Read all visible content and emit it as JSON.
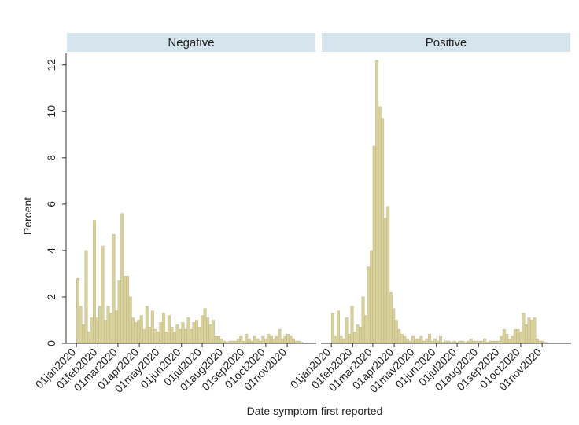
{
  "chart_data": {
    "type": "histogram",
    "xlabel": "Date symptom first reported",
    "ylabel": "Percent",
    "bins": [
      21915,
      21919,
      21923,
      21927,
      21931,
      21935,
      21939,
      21943,
      21947,
      21951,
      21955,
      21959,
      21963,
      21967,
      21971,
      21975,
      21979,
      21983,
      21987,
      21991,
      21995,
      21999,
      22003,
      22007,
      22011,
      22015,
      22019,
      22023,
      22027,
      22031,
      22035,
      22039,
      22043,
      22047,
      22051,
      22055,
      22059,
      22063,
      22067,
      22071,
      22075,
      22079,
      22083,
      22087,
      22091,
      22095,
      22099,
      22103,
      22107,
      22111,
      22115,
      22119,
      22123,
      22127,
      22131,
      22135,
      22139,
      22143,
      22147,
      22151,
      22155,
      22159,
      22163,
      22167,
      22171,
      22175,
      22179,
      22183,
      22187,
      22191,
      22195,
      22199,
      22203,
      22207,
      22211,
      22215,
      22219,
      22223,
      22227,
      22231,
      22235,
      22239,
      22243,
      22247,
      22251
    ],
    "series": [
      {
        "name": "Negative",
        "color": "#d8d19c",
        "values": [
          2.8,
          1.6,
          0.8,
          4.0,
          0.5,
          1.1,
          5.3,
          1.1,
          1.6,
          4.2,
          1.0,
          1.6,
          1.3,
          4.7,
          1.4,
          2.7,
          5.6,
          2.9,
          2.9,
          2.0,
          1.1,
          0.9,
          1.0,
          1.2,
          0.6,
          1.6,
          0.7,
          1.4,
          0.6,
          0.5,
          0.9,
          1.3,
          0.5,
          1.2,
          0.7,
          0.5,
          0.8,
          0.6,
          0.9,
          0.6,
          1.1,
          0.6,
          0.9,
          1.0,
          0.7,
          1.2,
          1.5,
          1.1,
          0.8,
          1.0,
          0.3,
          0.3,
          0.2,
          0.1,
          0.05,
          0.1,
          0.1,
          0.1,
          0.2,
          0.3,
          0.1,
          0.4,
          0.2,
          0.1,
          0.3,
          0.2,
          0.1,
          0.3,
          0.2,
          0.4,
          0.3,
          0.2,
          0.3,
          0.6,
          0.2,
          0.3,
          0.4,
          0.3,
          0.2,
          0.1,
          0.1,
          0.05,
          0,
          0
        ]
      },
      {
        "name": "Positive",
        "color": "#d8d19c",
        "values": [
          1.3,
          0.3,
          1.4,
          0.3,
          0.2,
          1.1,
          0.4,
          1.6,
          0.5,
          0.8,
          0.7,
          2.0,
          1.2,
          3.3,
          4.0,
          8.5,
          12.2,
          10.2,
          9.7,
          5.4,
          5.9,
          2.2,
          1.5,
          1.0,
          0.6,
          0.4,
          0.3,
          0.2,
          0.1,
          0.3,
          0.2,
          0.2,
          0.3,
          0.1,
          0.2,
          0.4,
          0.1,
          0.2,
          0.1,
          0.3,
          0.05,
          0.1,
          0.1,
          0.05,
          0.1,
          0.05,
          0.1,
          0.1,
          0.05,
          0.1,
          0.2,
          0.1,
          0.1,
          0.1,
          0.1,
          0.2,
          0.05,
          0.1,
          0.1,
          0.1,
          0.1,
          0.3,
          0.6,
          0.4,
          0.2,
          0.3,
          0.6,
          0.6,
          0.5,
          1.3,
          0.8,
          1.1,
          1.0,
          1.1,
          0.2,
          0.1,
          0.1,
          0.05,
          0,
          0,
          0,
          0,
          0,
          0
        ]
      }
    ],
    "xlim": [
      21900,
      22262
    ],
    "xticks": [
      {
        "value": 21915,
        "label": "01jan2020"
      },
      {
        "value": 21946,
        "label": "01feb2020"
      },
      {
        "value": 21975,
        "label": "01mar2020"
      },
      {
        "value": 22006,
        "label": "01apr2020"
      },
      {
        "value": 22036,
        "label": "01may2020"
      },
      {
        "value": 22067,
        "label": "01jun2020"
      },
      {
        "value": 22097,
        "label": "01jul2020"
      },
      {
        "value": 22128,
        "label": "01aug2020"
      },
      {
        "value": 22159,
        "label": "01sep2020"
      },
      {
        "value": 22189,
        "label": "01oct2020"
      },
      {
        "value": 22220,
        "label": "01nov2020"
      }
    ],
    "ylim": [
      0,
      12.5
    ],
    "yticks": [
      0,
      2,
      4,
      6,
      8,
      10,
      12
    ],
    "grid": false
  }
}
